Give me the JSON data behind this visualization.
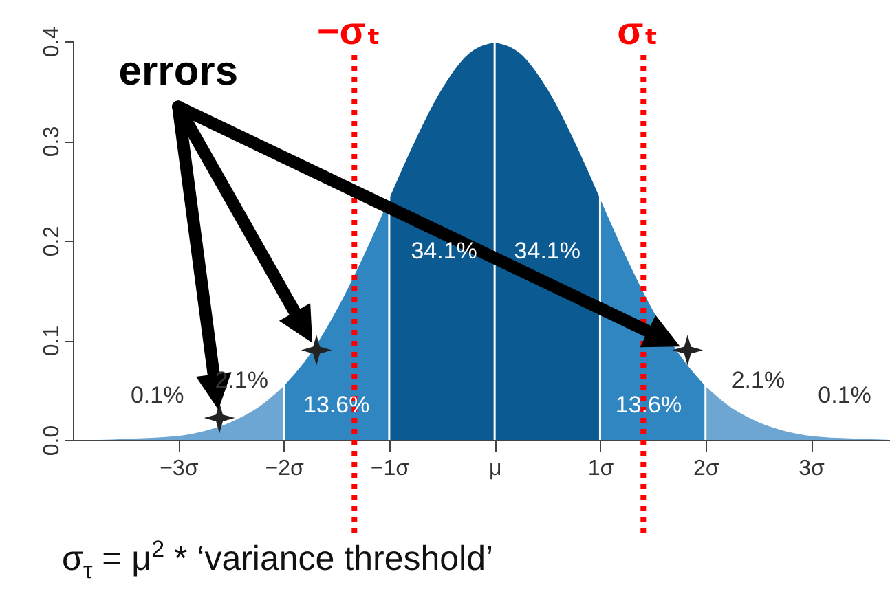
{
  "chart_data": {
    "type": "area",
    "xlim": [
      -4,
      3.75
    ],
    "ylim": [
      0,
      0.4
    ],
    "xticks": [
      {
        "value": -3,
        "label": "−3σ"
      },
      {
        "value": -2,
        "label": "−2σ"
      },
      {
        "value": -1,
        "label": "−1σ"
      },
      {
        "value": 0,
        "label": "μ"
      },
      {
        "value": 1,
        "label": "1σ"
      },
      {
        "value": 2,
        "label": "2σ"
      },
      {
        "value": 3,
        "label": "3σ"
      }
    ],
    "yticks": [
      {
        "value": 0,
        "label": "0.0"
      },
      {
        "value": 0.1,
        "label": "0.1"
      },
      {
        "value": 0.2,
        "label": "0.2"
      },
      {
        "value": 0.3,
        "label": "0.3"
      },
      {
        "value": 0.4,
        "label": "0.4"
      }
    ],
    "series": [
      {
        "type": "area",
        "color": "#6ea6d3",
        "x": [
          -4,
          -3.75,
          -3.5,
          -3.25,
          -3,
          -2.75,
          -2.5,
          -2.25,
          -2
        ],
        "values": [
          0.0,
          0.0,
          0.001,
          0.002,
          0.004,
          0.009,
          0.018,
          0.032,
          0.054
        ]
      },
      {
        "type": "area",
        "color": "#2f86c0",
        "x": [
          -2,
          -1.75,
          -1.5,
          -1.25,
          -1
        ],
        "values": [
          0.054,
          0.086,
          0.13,
          0.183,
          0.242
        ]
      },
      {
        "type": "area",
        "color": "#0b5b92",
        "x": [
          -1,
          -0.75,
          -0.5,
          -0.25,
          0
        ],
        "values": [
          0.242,
          0.301,
          0.352,
          0.387,
          0.399
        ]
      },
      {
        "type": "area",
        "color": "#0b5b92",
        "x": [
          0,
          0.25,
          0.5,
          0.75,
          1
        ],
        "values": [
          0.399,
          0.387,
          0.352,
          0.301,
          0.242
        ]
      },
      {
        "type": "area",
        "color": "#2f86c0",
        "x": [
          1,
          1.25,
          1.5,
          1.75,
          2
        ],
        "values": [
          0.242,
          0.183,
          0.13,
          0.086,
          0.054
        ]
      },
      {
        "type": "area",
        "color": "#6ea6d3",
        "x": [
          2,
          2.25,
          2.5,
          2.75,
          3,
          3.25,
          3.5,
          3.75
        ],
        "values": [
          0.054,
          0.032,
          0.018,
          0.009,
          0.004,
          0.002,
          0.001,
          0.0
        ]
      },
      {
        "type": "scatter",
        "marker": "star",
        "color": "#222222",
        "x": [
          -2.61,
          -1.69,
          1.83
        ],
        "values": [
          0.022,
          0.09,
          0.09
        ]
      }
    ],
    "ref_lines": [
      {
        "axis": "x",
        "value": -2,
        "color": "#ffffff",
        "line_style": "solid"
      },
      {
        "axis": "x",
        "value": -1,
        "color": "#ffffff",
        "line_style": "solid"
      },
      {
        "axis": "x",
        "value": 0,
        "color": "#ffffff",
        "line_style": "solid"
      },
      {
        "axis": "x",
        "value": 1,
        "color": "#ffffff",
        "line_style": "solid"
      },
      {
        "axis": "x",
        "value": 2,
        "color": "#ffffff",
        "line_style": "solid"
      },
      {
        "axis": "x",
        "value": -1.33,
        "label": "−σₜ",
        "color": "#ff0000",
        "line_style": "dotted"
      },
      {
        "axis": "x",
        "value": 1.41,
        "label": "σₜ",
        "color": "#ff0000",
        "line_style": "dotted"
      }
    ],
    "annotations": [
      "errors",
      "0.1%",
      "2.1%",
      "13.6%",
      "34.1%",
      "34.1%",
      "13.6%",
      "2.1%",
      "0.1%",
      "σ$_{τ}$ = μ$^{2}$  * ‘variance threshold’"
    ],
    "grid": false
  }
}
